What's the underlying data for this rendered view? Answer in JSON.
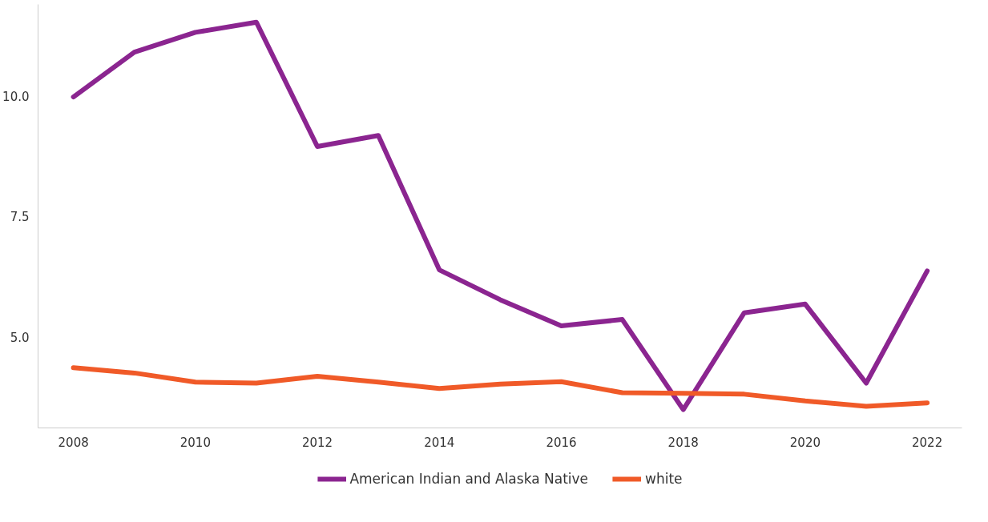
{
  "chart_data": {
    "type": "line",
    "x": [
      2008,
      2009,
      2010,
      2011,
      2012,
      2013,
      2014,
      2015,
      2016,
      2017,
      2018,
      2019,
      2020,
      2021,
      2022
    ],
    "series": [
      {
        "name": "American Indian and Alaska Native",
        "color": "#8b2590",
        "values": [
          9.98,
          10.91,
          11.32,
          11.53,
          8.95,
          9.18,
          6.39,
          5.77,
          5.23,
          5.36,
          3.49,
          5.5,
          5.68,
          4.04,
          6.37
        ]
      },
      {
        "name": "white",
        "color": "#f05a28",
        "values": [
          4.36,
          4.25,
          4.06,
          4.04,
          4.18,
          4.06,
          3.93,
          4.02,
          4.07,
          3.84,
          3.83,
          3.81,
          3.67,
          3.56,
          3.63
        ]
      }
    ],
    "xlim": [
      2007.42,
      2022.57
    ],
    "xticks": [
      2008,
      2010,
      2012,
      2014,
      2016,
      2018,
      2020,
      2022
    ],
    "ylim": [
      3.11,
      11.9
    ],
    "yticks": [
      {
        "value": 5,
        "label": "5.0"
      },
      {
        "value": 7.5,
        "label": "7.5"
      },
      {
        "value": 10,
        "label": "10.0"
      }
    ],
    "grid": false,
    "legend": "bottom",
    "marker": "none",
    "line_style": "solid"
  }
}
